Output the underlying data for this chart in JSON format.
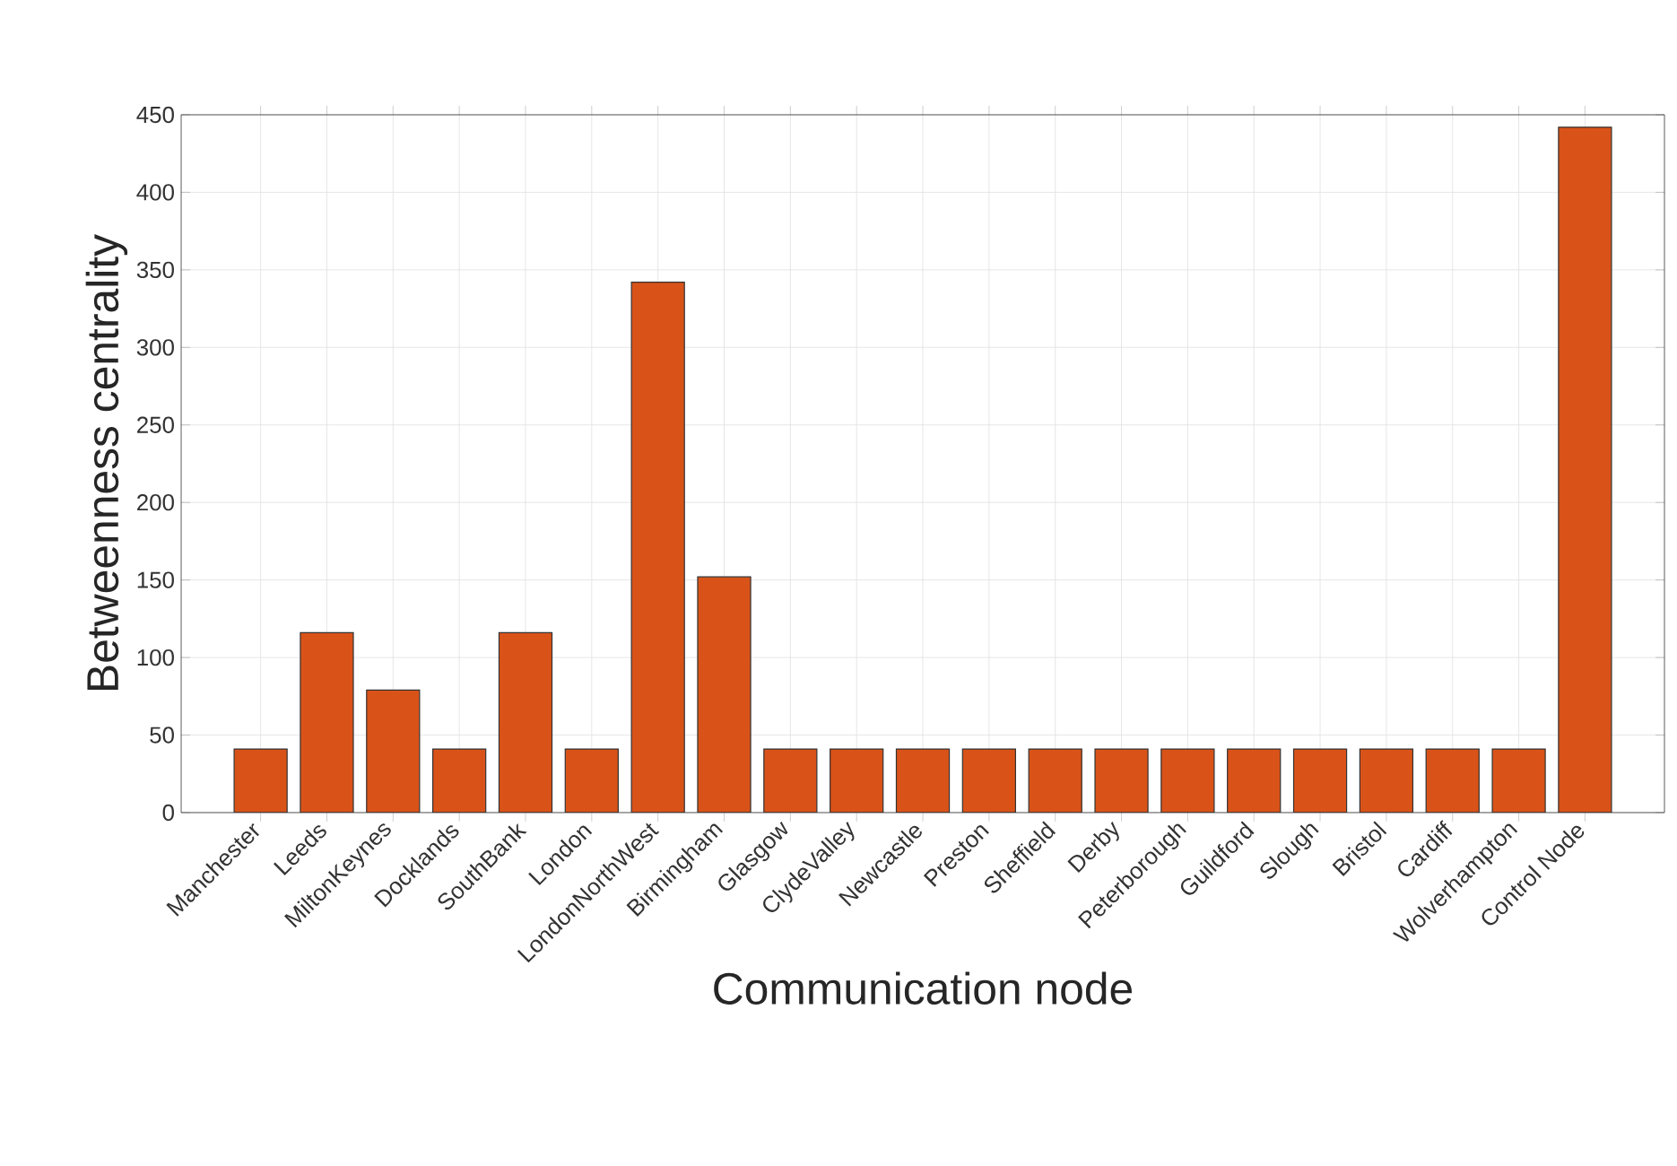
{
  "chart_data": {
    "type": "bar",
    "xlabel": "Communication node",
    "ylabel": "Betweenness centrality",
    "categories": [
      "Manchester",
      "Leeds",
      "MiltonKeynes",
      "Docklands",
      "SouthBank",
      "London",
      "LondonNorthWest",
      "Birmingham",
      "Glasgow",
      "ClydeValley",
      "Newcastle",
      "Preston",
      "Sheffield",
      "Derby",
      "Peterborough",
      "Guildford",
      "Slough",
      "Bristol",
      "Cardiff",
      "Wolverhampton",
      "Control Node"
    ],
    "values": [
      41,
      116,
      79,
      41,
      116,
      41,
      342,
      152,
      41,
      41,
      41,
      41,
      41,
      41,
      41,
      41,
      41,
      41,
      41,
      41,
      442
    ],
    "color": "#d95319",
    "ylim": [
      0,
      450
    ],
    "yticks": [
      0,
      50,
      100,
      150,
      200,
      250,
      300,
      350,
      400,
      450
    ],
    "grid": true
  }
}
